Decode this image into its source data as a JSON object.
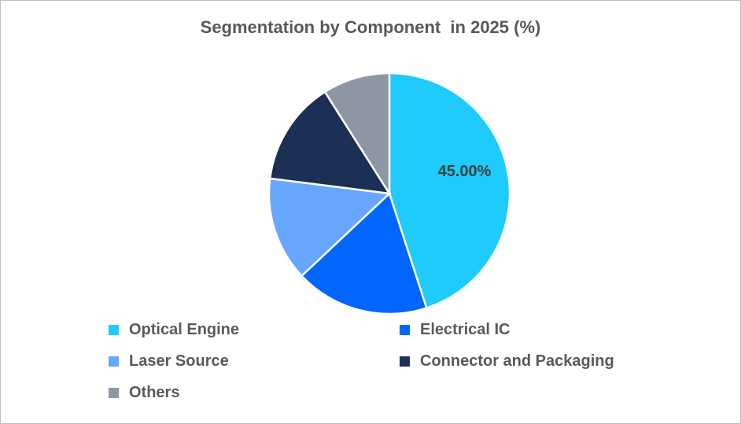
{
  "chart_data": {
    "type": "pie",
    "title": "Segmentation by Component  in 2025 (%)",
    "categories": [
      "Optical Engine",
      "Electrical IC",
      "Laser Source",
      "Connector and Packaging",
      "Others"
    ],
    "values": [
      45,
      18,
      14,
      14,
      9
    ],
    "unit": "%",
    "data_labels": [
      {
        "category": "Optical Engine",
        "text": "45.00%"
      }
    ],
    "colors": [
      "#1ECBFB",
      "#0066FF",
      "#66A6FF",
      "#1C2F55",
      "#8F96A3"
    ],
    "start_angle": "top, clockwise",
    "legend_position": "bottom"
  }
}
